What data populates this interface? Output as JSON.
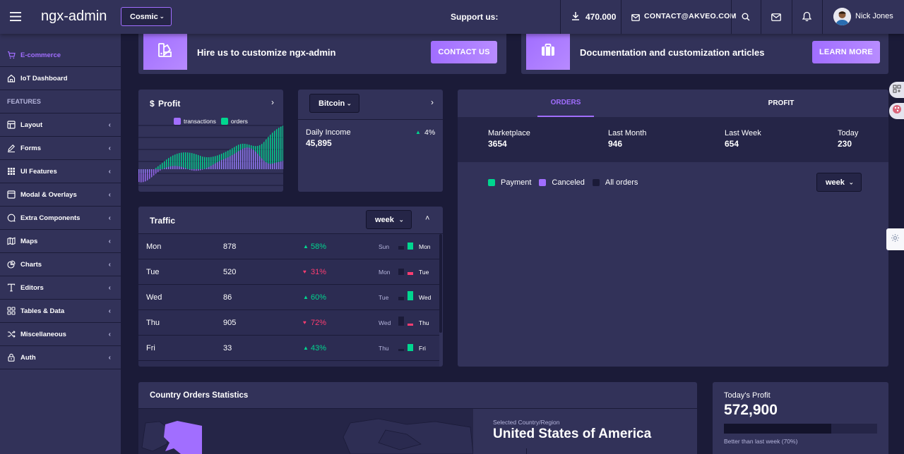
{
  "header": {
    "app_title": "ngx-admin",
    "theme_select": "Cosmic",
    "support_label": "Support us:",
    "stars_count": "470.000",
    "contact_email": "CONTACT@AKVEO.COM",
    "user_name": "Nick Jones"
  },
  "sidebar": {
    "items": [
      {
        "label": "E-commerce",
        "icon": "cart-icon",
        "active": true
      },
      {
        "label": "IoT Dashboard",
        "icon": "home-icon"
      },
      {
        "label": "FEATURES",
        "group": true
      },
      {
        "label": "Layout",
        "icon": "layout-icon"
      },
      {
        "label": "Forms",
        "icon": "edit-icon"
      },
      {
        "label": "UI Features",
        "icon": "keypad-icon"
      },
      {
        "label": "Modal & Overlays",
        "icon": "browser-icon"
      },
      {
        "label": "Extra Components",
        "icon": "message-icon"
      },
      {
        "label": "Maps",
        "icon": "map-icon"
      },
      {
        "label": "Charts",
        "icon": "pie-chart-icon"
      },
      {
        "label": "Editors",
        "icon": "text-icon"
      },
      {
        "label": "Tables & Data",
        "icon": "grid-icon"
      },
      {
        "label": "Miscellaneous",
        "icon": "shuffle-icon"
      },
      {
        "label": "Auth",
        "icon": "lock-icon"
      }
    ]
  },
  "promo": {
    "hire_text": "Hire us to customize ngx-admin",
    "contact_button": "CONTACT US",
    "docs_text": "Documentation and customization articles",
    "learn_button": "LEARN MORE"
  },
  "profit_card": {
    "title": "Profit",
    "currency_symbol": "$",
    "legend": [
      "transactions",
      "orders"
    ]
  },
  "bitcoin_card": {
    "select": "Bitcoin",
    "daily_income_label": "Daily Income",
    "daily_income_value": "45,895",
    "change": "4%"
  },
  "orders_card": {
    "tabs": [
      "ORDERS",
      "PROFIT"
    ],
    "stats": [
      {
        "label": "Marketplace",
        "value": "3654"
      },
      {
        "label": "Last Month",
        "value": "946"
      },
      {
        "label": "Last Week",
        "value": "654"
      },
      {
        "label": "Today",
        "value": "230"
      }
    ],
    "legend": [
      "Payment",
      "Canceled",
      "All orders"
    ],
    "period_select": "week"
  },
  "traffic": {
    "title": "Traffic",
    "period_select": "week",
    "rows": [
      {
        "day": "Mon",
        "value": "878",
        "delta": "58%",
        "direction": "up",
        "prev": "Sun",
        "cur": "Mon"
      },
      {
        "day": "Tue",
        "value": "520",
        "delta": "31%",
        "direction": "down",
        "prev": "Mon",
        "cur": "Tue"
      },
      {
        "day": "Wed",
        "value": "86",
        "delta": "60%",
        "direction": "up",
        "prev": "Tue",
        "cur": "Wed"
      },
      {
        "day": "Thu",
        "value": "905",
        "delta": "72%",
        "direction": "down",
        "prev": "Wed",
        "cur": "Thu"
      },
      {
        "day": "Fri",
        "value": "33",
        "delta": "43%",
        "direction": "up",
        "prev": "Thu",
        "cur": "Fri"
      }
    ]
  },
  "country": {
    "title": "Country Orders Statistics",
    "selected_label": "Selected Country/Region",
    "selected_country": "United States of America"
  },
  "today_profit": {
    "title": "Today's Profit",
    "value": "572,900",
    "progress_fraction": 0.7,
    "caption": "Better than last week (70%)"
  },
  "colors": {
    "background": "#1b1b38",
    "card": "#323259",
    "accent": "#a16eff",
    "success": "#00d68f",
    "danger": "#ff3d71"
  }
}
